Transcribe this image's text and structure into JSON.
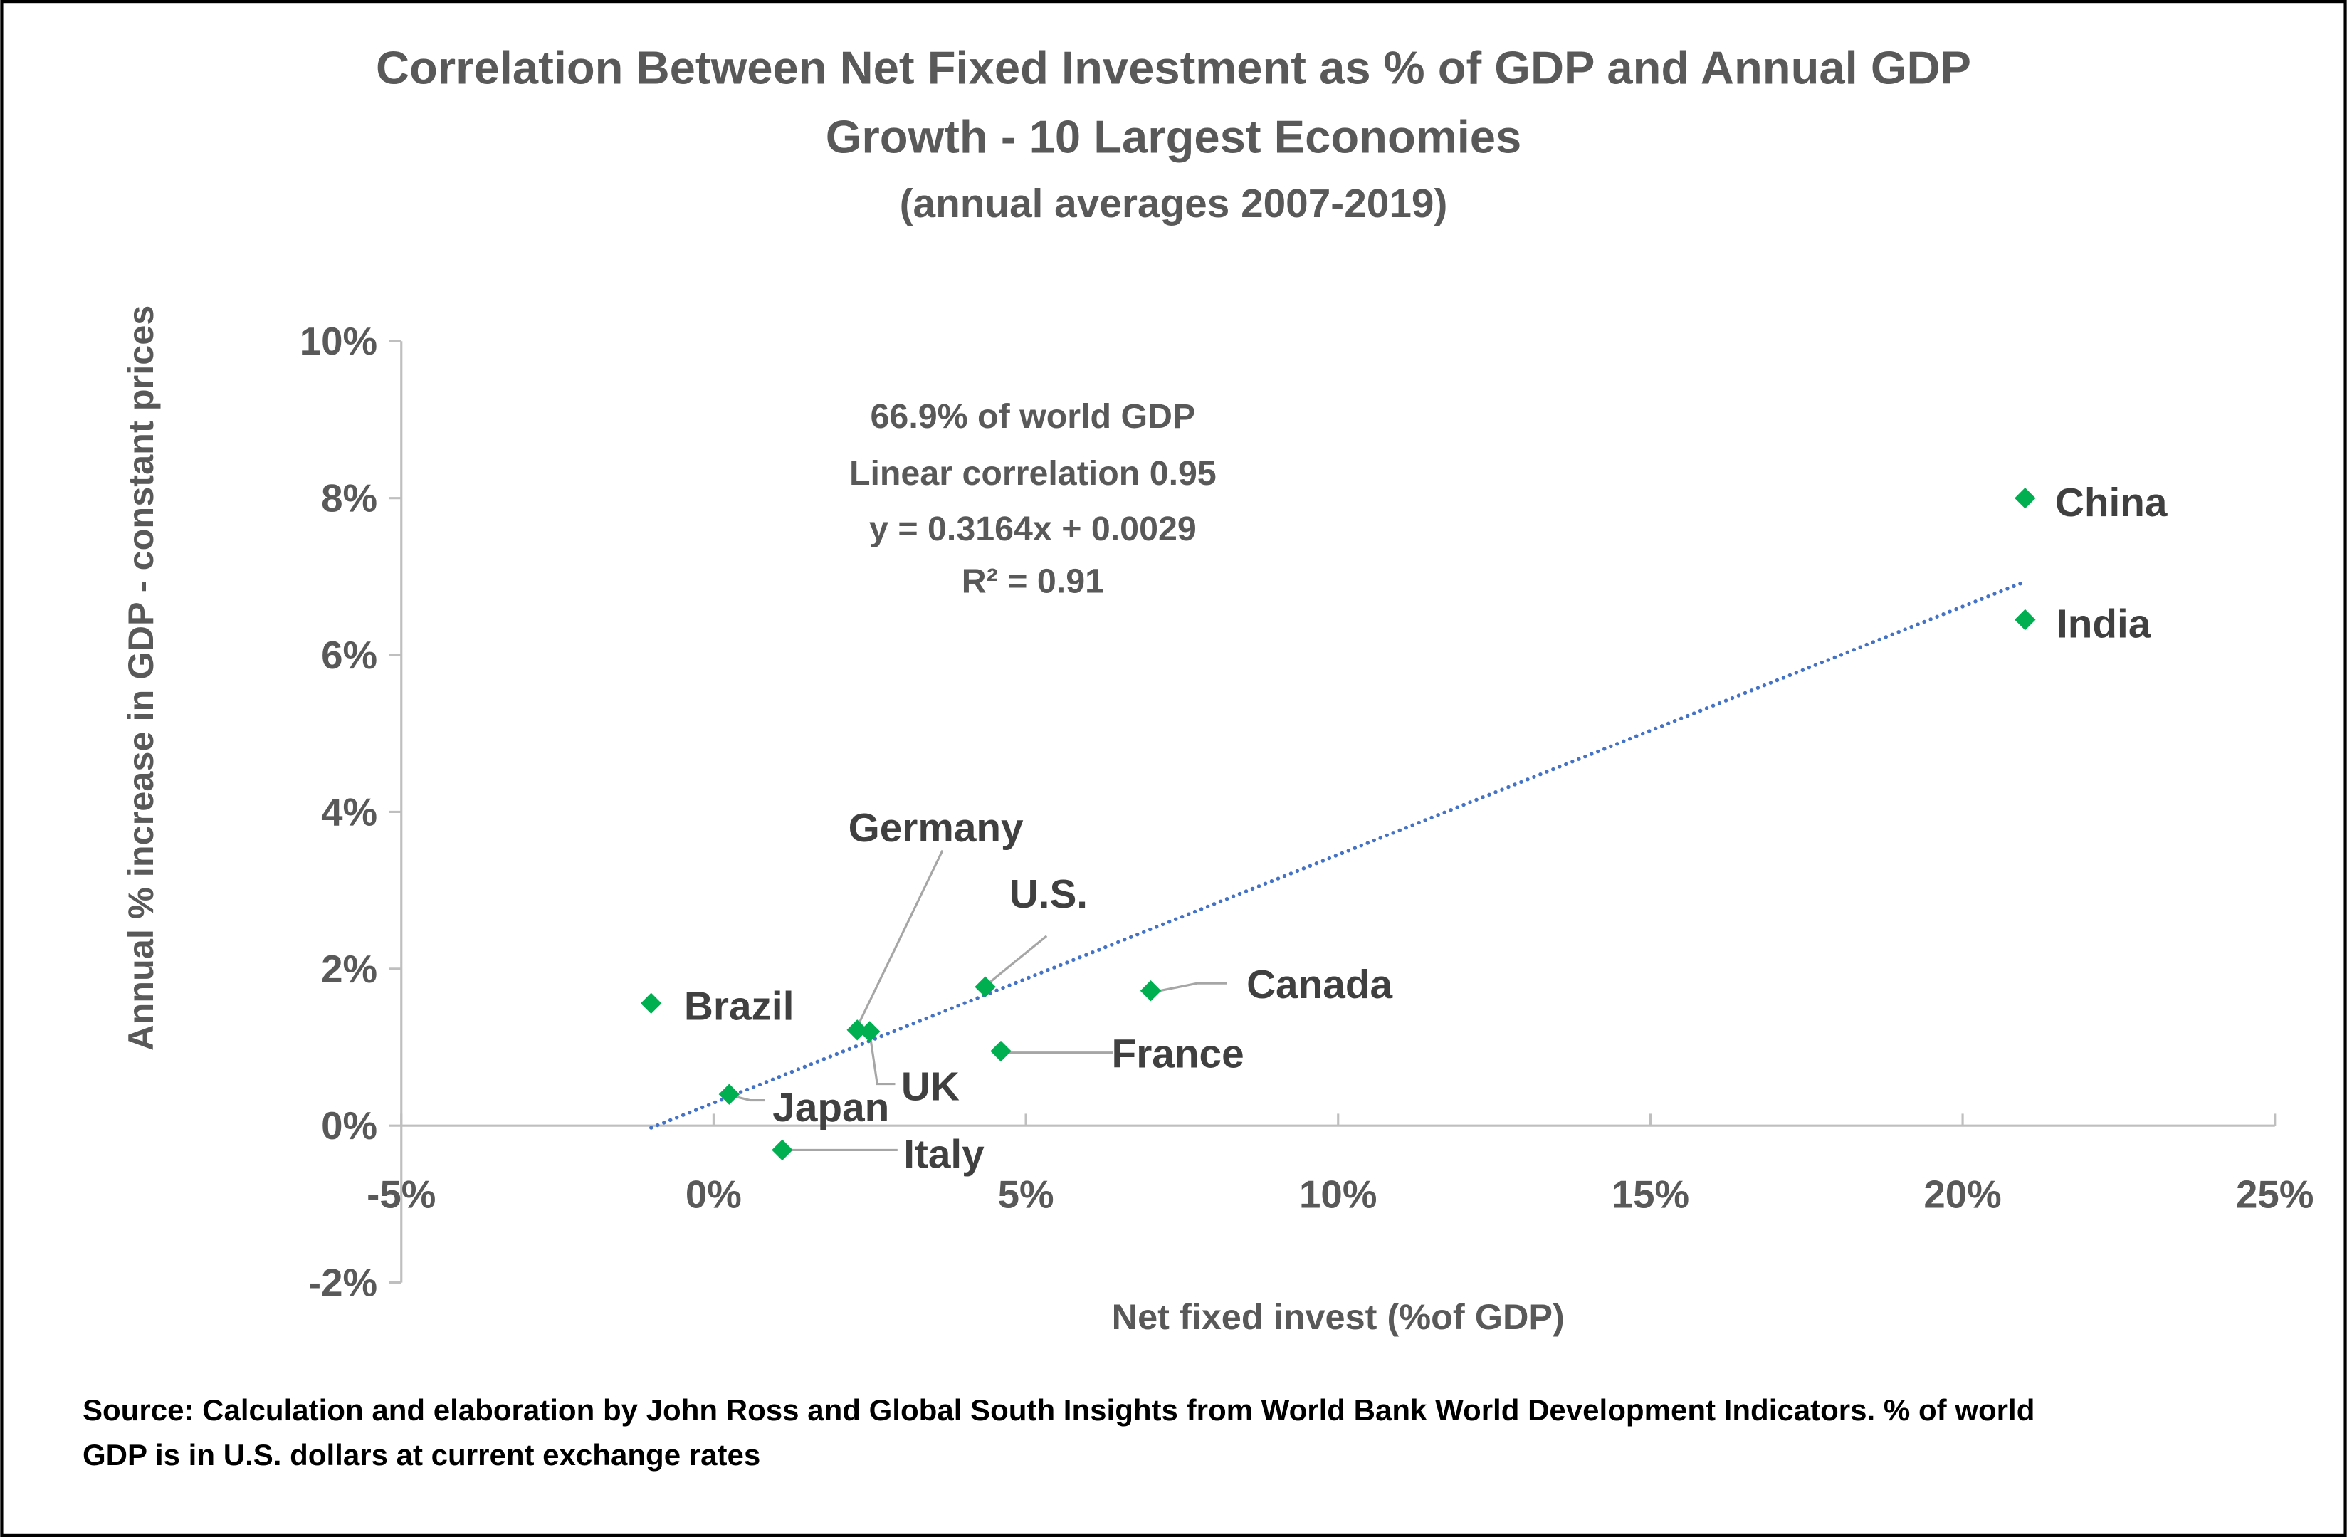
{
  "chart_data": {
    "type": "scatter",
    "title": [
      "Correlation Between Net Fixed Investment as % of GDP and Annual GDP",
      "Growth - 10 Largest Economies"
    ],
    "subtitle": "(annual averages 2007-2019)",
    "xlabel": "Net fixed invest (%of GDP)",
    "ylabel": "Annual % increase in GDP - constant prices",
    "xlim": [
      -5,
      25
    ],
    "ylim": [
      -2,
      10
    ],
    "xticks": [
      -5,
      0,
      5,
      10,
      15,
      20,
      25
    ],
    "yticks": [
      -2,
      0,
      2,
      4,
      6,
      8,
      10
    ],
    "xtick_labels": [
      "-5%",
      "0%",
      "5%",
      "10%",
      "15%",
      "20%",
      "25%"
    ],
    "ytick_labels": [
      "-2%",
      "0%",
      "2%",
      "4%",
      "6%",
      "8%",
      "10%"
    ],
    "points": [
      {
        "label": "China",
        "x": 21.0,
        "y": 8.0
      },
      {
        "label": "India",
        "x": 21.0,
        "y": 6.45
      },
      {
        "label": "Brazil",
        "x": -1.0,
        "y": 1.56
      },
      {
        "label": "Germany",
        "x": 2.3,
        "y": 1.22
      },
      {
        "label": "U.S.",
        "x": 4.35,
        "y": 1.77
      },
      {
        "label": "Canada",
        "x": 7.0,
        "y": 1.72
      },
      {
        "label": "France",
        "x": 4.6,
        "y": 0.95
      },
      {
        "label": "UK",
        "x": 2.5,
        "y": 1.2
      },
      {
        "label": "Japan",
        "x": 0.25,
        "y": 0.4
      },
      {
        "label": "Italy",
        "x": 1.1,
        "y": -0.31
      }
    ],
    "trendline": {
      "type": "linear",
      "slope": 0.3164,
      "intercept": 0.29,
      "x_range": [
        -1.0,
        21.0
      ],
      "style": "dotted"
    },
    "annotations": [
      "66.9% of world GDP",
      "Linear correlation 0.95",
      "y = 0.3164x + 0.0029",
      "R² = 0.91"
    ],
    "colors": {
      "marker": "#00B050",
      "trendline": "#4472C4",
      "axis": "#BFBFBF",
      "leader": "#A6A6A6"
    }
  },
  "source": [
    "Source: Calculation and elaboration by John Ross and Global South Insights from World Bank World Development Indicators. % of world",
    "GDP is in U.S. dollars at current exchange rates"
  ]
}
